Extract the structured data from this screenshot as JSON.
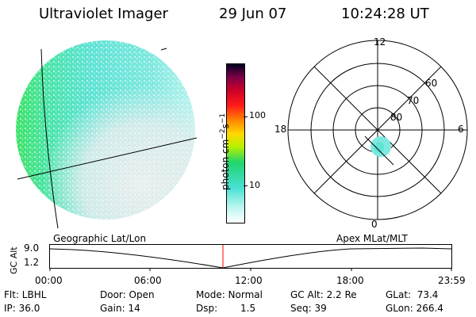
{
  "header": {
    "instrument": "Ultraviolet Imager",
    "date": "29 Jun 07",
    "time": "10:24:28 UT"
  },
  "image_panel": {
    "colors": {
      "cyan": "#5fe3d4",
      "green": "#3fe26a",
      "light": "#e8eeee"
    }
  },
  "colorbar": {
    "unit_label": "photon cm",
    "unit_exp1": "−2",
    "unit_s": "s",
    "unit_exp2": "−1",
    "tick_100": "100",
    "tick_10": "10",
    "colors": [
      "#ffffff",
      "#b9f6ee",
      "#49e0d4",
      "#20d56d",
      "#b8f000",
      "#ffd800",
      "#ff8c00",
      "#ff1a1a",
      "#c8002a",
      "#7a0048",
      "#000020"
    ]
  },
  "polar_plot": {
    "mlt_12": "12",
    "mlt_18": "18",
    "mlt_6": "6",
    "mlt_0": "0",
    "lat_60": "60",
    "lat_70": "70",
    "lat_80": "80"
  },
  "timeline": {
    "left_label": "Geographic Lat/Lon",
    "right_label": "Apex MLat/MLT",
    "y_axis_label": "GC Alt",
    "y_top": "9.0",
    "y_bottom": "1.2",
    "ticks": [
      "00:00",
      "06:00",
      "12:00",
      "18:00",
      "23:59"
    ],
    "marker_color": "#ff0000"
  },
  "status": {
    "flt": "Flt: LBHL",
    "ip": "IP: 36.0",
    "door": "Door: Open",
    "gain": "Gain: 14",
    "mode": "Mode: Normal",
    "dsp_label": "Dsp:",
    "dsp_value": "1.5",
    "gc_alt": "GC Alt: 2.2 Re",
    "seq": "Seq: 39",
    "glat": "GLat:  73.4",
    "glon": "GLon: 266.4"
  }
}
